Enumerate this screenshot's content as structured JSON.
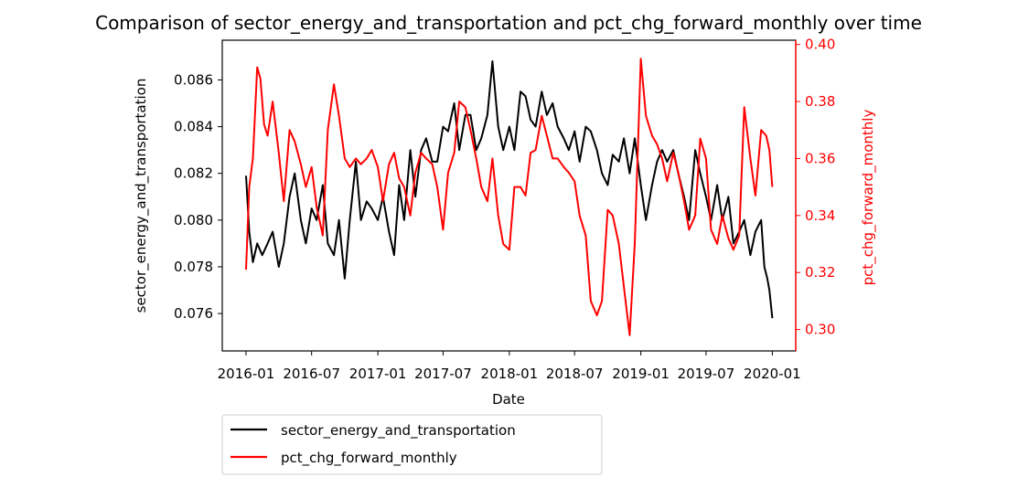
{
  "chart_data": {
    "type": "line",
    "title": "Comparison of sector_energy_and_transportation and pct_chg_forward_monthly over time",
    "xlabel": "Date",
    "ylabel_left": "sector_energy_and_transportation",
    "ylabel_right": "pct_chg_forward_monthly",
    "x_ticks": [
      "2016-01",
      "2016-07",
      "2017-01",
      "2017-07",
      "2018-01",
      "2018-07",
      "2019-01",
      "2019-07",
      "2020-01"
    ],
    "y_left_ticks": [
      "0.076",
      "0.078",
      "0.080",
      "0.082",
      "0.084",
      "0.086"
    ],
    "y_right_ticks": [
      "0.30",
      "0.32",
      "0.34",
      "0.36",
      "0.38",
      "0.40"
    ],
    "xlim": [
      "2015-10-27",
      "2020-03-06"
    ],
    "ylim_left": [
      0.0744,
      0.0877
    ],
    "ylim_right": [
      0.2925,
      0.4015
    ],
    "grid": false,
    "legend_position": "below-left",
    "colors": {
      "left_series": "#000000",
      "right_series": "#ff0000",
      "right_axis": "#ff0000"
    },
    "series": [
      {
        "name": "sector_energy_and_transportation",
        "axis": "left",
        "color": "#000000",
        "x": [
          "2016-01-01",
          "2016-01-10",
          "2016-01-20",
          "2016-02-01",
          "2016-02-15",
          "2016-03-01",
          "2016-03-15",
          "2016-04-01",
          "2016-04-15",
          "2016-05-01",
          "2016-05-15",
          "2016-06-01",
          "2016-06-15",
          "2016-07-01",
          "2016-07-15",
          "2016-08-01",
          "2016-08-15",
          "2016-09-01",
          "2016-09-15",
          "2016-10-01",
          "2016-10-15",
          "2016-11-01",
          "2016-11-15",
          "2016-12-01",
          "2016-12-15",
          "2017-01-01",
          "2017-01-15",
          "2017-02-01",
          "2017-02-15",
          "2017-03-01",
          "2017-03-15",
          "2017-04-01",
          "2017-04-15",
          "2017-05-01",
          "2017-05-15",
          "2017-06-01",
          "2017-06-15",
          "2017-07-01",
          "2017-07-15",
          "2017-08-01",
          "2017-08-15",
          "2017-09-01",
          "2017-09-15",
          "2017-10-01",
          "2017-10-15",
          "2017-11-01",
          "2017-11-15",
          "2017-12-01",
          "2017-12-15",
          "2018-01-01",
          "2018-01-15",
          "2018-02-01",
          "2018-02-15",
          "2018-03-01",
          "2018-03-15",
          "2018-04-01",
          "2018-04-15",
          "2018-05-01",
          "2018-05-15",
          "2018-06-01",
          "2018-06-15",
          "2018-07-01",
          "2018-07-15",
          "2018-08-01",
          "2018-08-15",
          "2018-09-01",
          "2018-09-15",
          "2018-10-01",
          "2018-10-15",
          "2018-11-01",
          "2018-11-15",
          "2018-12-01",
          "2018-12-15",
          "2019-01-01",
          "2019-01-15",
          "2019-02-01",
          "2019-02-15",
          "2019-03-01",
          "2019-03-15",
          "2019-04-01",
          "2019-04-15",
          "2019-05-01",
          "2019-05-15",
          "2019-06-01",
          "2019-06-15",
          "2019-07-01",
          "2019-07-15",
          "2019-08-01",
          "2019-08-15",
          "2019-09-01",
          "2019-09-15",
          "2019-10-01",
          "2019-10-15",
          "2019-11-01",
          "2019-11-15",
          "2019-12-01",
          "2019-12-10",
          "2019-12-18",
          "2019-12-24",
          "2020-01-01"
        ],
        "values": [
          0.0819,
          0.0795,
          0.0782,
          0.079,
          0.0785,
          0.079,
          0.0795,
          0.078,
          0.079,
          0.081,
          0.082,
          0.08,
          0.079,
          0.0805,
          0.08,
          0.0815,
          0.079,
          0.0785,
          0.08,
          0.0775,
          0.08,
          0.0825,
          0.08,
          0.0808,
          0.0805,
          0.08,
          0.081,
          0.0795,
          0.0785,
          0.0815,
          0.08,
          0.083,
          0.081,
          0.083,
          0.0835,
          0.0825,
          0.0825,
          0.084,
          0.0838,
          0.085,
          0.083,
          0.0845,
          0.0845,
          0.083,
          0.0835,
          0.0845,
          0.0868,
          0.084,
          0.083,
          0.084,
          0.083,
          0.0855,
          0.0853,
          0.0843,
          0.084,
          0.0855,
          0.0845,
          0.085,
          0.084,
          0.0835,
          0.083,
          0.0838,
          0.0825,
          0.084,
          0.0838,
          0.083,
          0.082,
          0.0815,
          0.0828,
          0.0825,
          0.0835,
          0.082,
          0.0835,
          0.0815,
          0.08,
          0.0815,
          0.0825,
          0.083,
          0.0825,
          0.083,
          0.082,
          0.081,
          0.08,
          0.083,
          0.082,
          0.081,
          0.08,
          0.0815,
          0.08,
          0.081,
          0.079,
          0.0795,
          0.08,
          0.0785,
          0.0795,
          0.08,
          0.078,
          0.0775,
          0.077,
          0.0758
        ]
      },
      {
        "name": "pct_chg_forward_monthly",
        "axis": "right",
        "color": "#ff0000",
        "x": [
          "2016-01-01",
          "2016-01-10",
          "2016-01-20",
          "2016-02-01",
          "2016-02-10",
          "2016-02-20",
          "2016-03-01",
          "2016-03-15",
          "2016-04-01",
          "2016-04-15",
          "2016-05-01",
          "2016-05-15",
          "2016-06-01",
          "2016-06-15",
          "2016-07-01",
          "2016-07-15",
          "2016-08-01",
          "2016-08-15",
          "2016-09-01",
          "2016-09-15",
          "2016-10-01",
          "2016-10-15",
          "2016-11-01",
          "2016-11-15",
          "2016-12-01",
          "2016-12-15",
          "2017-01-01",
          "2017-01-15",
          "2017-02-01",
          "2017-02-15",
          "2017-03-01",
          "2017-03-15",
          "2017-04-01",
          "2017-04-15",
          "2017-05-01",
          "2017-05-15",
          "2017-06-01",
          "2017-06-15",
          "2017-07-01",
          "2017-07-15",
          "2017-08-01",
          "2017-08-15",
          "2017-09-01",
          "2017-09-15",
          "2017-10-01",
          "2017-10-15",
          "2017-11-01",
          "2017-11-15",
          "2017-12-01",
          "2017-12-15",
          "2018-01-01",
          "2018-01-15",
          "2018-02-01",
          "2018-02-15",
          "2018-03-01",
          "2018-03-15",
          "2018-04-01",
          "2018-04-15",
          "2018-05-01",
          "2018-05-15",
          "2018-06-01",
          "2018-06-15",
          "2018-07-01",
          "2018-07-15",
          "2018-08-01",
          "2018-08-15",
          "2018-09-01",
          "2018-09-15",
          "2018-10-01",
          "2018-10-15",
          "2018-11-01",
          "2018-11-15",
          "2018-12-01",
          "2018-12-15",
          "2019-01-01",
          "2019-01-15",
          "2019-02-01",
          "2019-02-15",
          "2019-03-01",
          "2019-03-15",
          "2019-04-01",
          "2019-04-15",
          "2019-05-01",
          "2019-05-15",
          "2019-06-01",
          "2019-06-15",
          "2019-07-01",
          "2019-07-15",
          "2019-08-01",
          "2019-08-15",
          "2019-09-01",
          "2019-09-15",
          "2019-10-01",
          "2019-10-15",
          "2019-11-01",
          "2019-11-15",
          "2019-12-01",
          "2019-12-15",
          "2019-12-24",
          "2020-01-01"
        ],
        "values": [
          0.321,
          0.35,
          0.36,
          0.392,
          0.388,
          0.372,
          0.368,
          0.38,
          0.362,
          0.345,
          0.37,
          0.366,
          0.358,
          0.35,
          0.357,
          0.343,
          0.333,
          0.37,
          0.386,
          0.375,
          0.36,
          0.357,
          0.36,
          0.358,
          0.36,
          0.363,
          0.357,
          0.345,
          0.358,
          0.362,
          0.353,
          0.35,
          0.34,
          0.355,
          0.362,
          0.36,
          0.358,
          0.35,
          0.335,
          0.355,
          0.362,
          0.38,
          0.378,
          0.37,
          0.36,
          0.35,
          0.345,
          0.36,
          0.34,
          0.33,
          0.328,
          0.35,
          0.35,
          0.347,
          0.362,
          0.363,
          0.375,
          0.368,
          0.36,
          0.36,
          0.357,
          0.355,
          0.352,
          0.34,
          0.333,
          0.31,
          0.305,
          0.31,
          0.342,
          0.34,
          0.33,
          0.315,
          0.298,
          0.33,
          0.395,
          0.375,
          0.368,
          0.365,
          0.36,
          0.352,
          0.362,
          0.355,
          0.345,
          0.335,
          0.34,
          0.367,
          0.36,
          0.335,
          0.33,
          0.34,
          0.332,
          0.328,
          0.333,
          0.378,
          0.36,
          0.347,
          0.37,
          0.368,
          0.363,
          0.35
        ]
      }
    ]
  }
}
